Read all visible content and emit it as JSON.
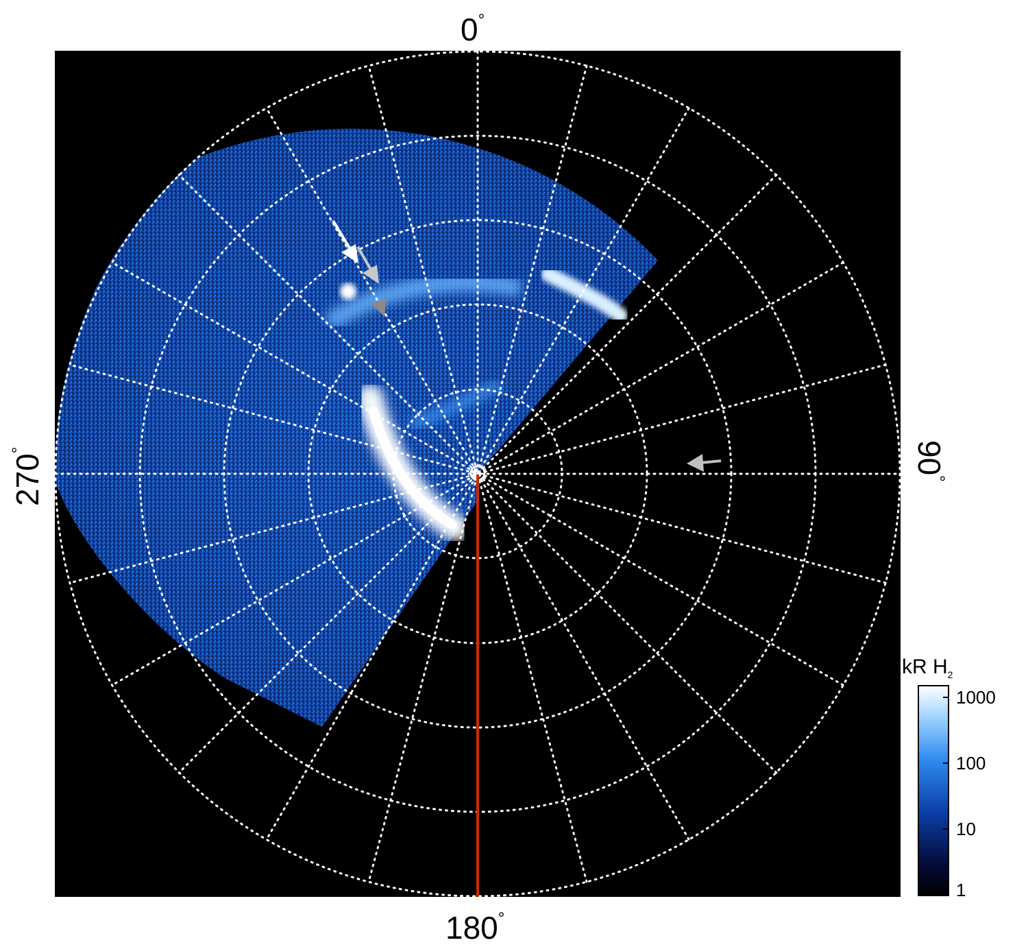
{
  "figure": {
    "angle_labels": {
      "top": "0",
      "right": "90",
      "bottom": "180",
      "left": "270",
      "unit": "°"
    },
    "colorbar": {
      "title": "kR H",
      "title_subscript": "2",
      "ticks": [
        "1000",
        "100",
        "10",
        "1"
      ],
      "colors": [
        "#ffffff",
        "#9fd3ff",
        "#2f8cf0",
        "#0b3fa8",
        "#050c3a",
        "#000000"
      ]
    },
    "image": {
      "background": "#000000",
      "grid_color": "#ffffff",
      "meridian_color": "#cc2a00",
      "emission_color": "#1f6fe0",
      "arrow_colors": [
        "#ffffff",
        "#c8c8c8",
        "#8a8a8a",
        "#c0c0c0"
      ]
    }
  }
}
